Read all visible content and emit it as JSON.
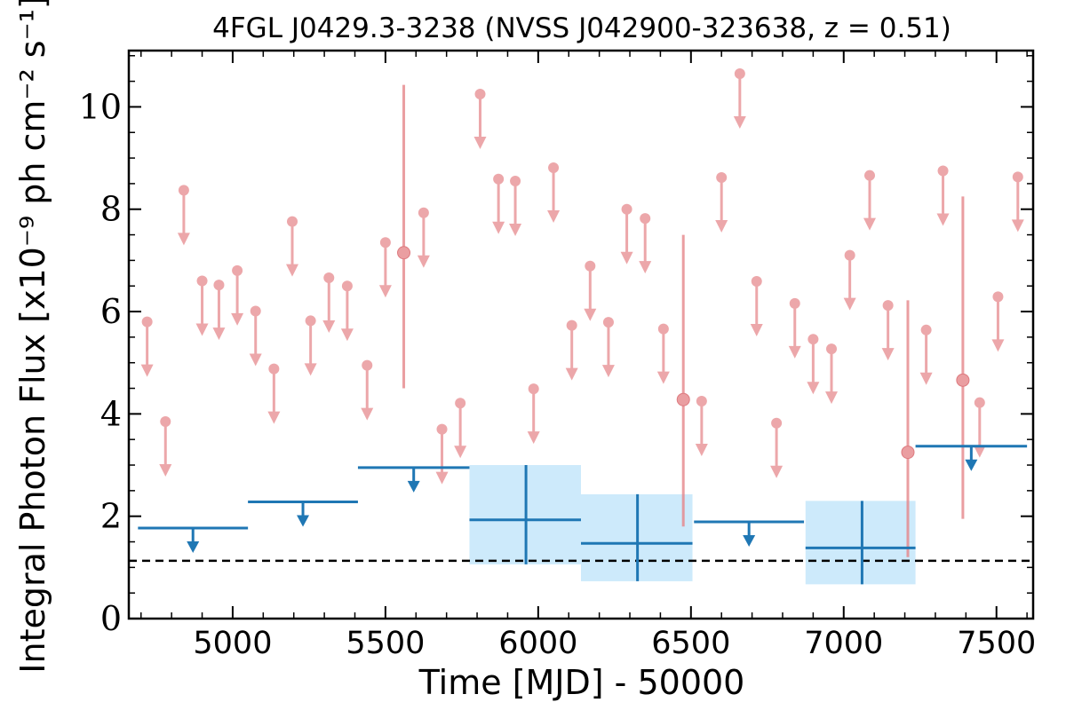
{
  "chart_data": {
    "type": "scatter",
    "title": "4FGL J0429.3-3238 (NVSS J042900-323638, z = 0.51)",
    "xlabel": "Time [MJD] - 50000",
    "ylabel": "Integral Photon Flux [x10⁻⁹ ph cm⁻² s⁻¹]",
    "xlim": [
      4660,
      7620
    ],
    "ylim": [
      0,
      11.1
    ],
    "x_ticks": [
      5000,
      5500,
      6000,
      6500,
      7000,
      7500
    ],
    "y_ticks": [
      0,
      2,
      4,
      6,
      8,
      10
    ],
    "reference_line": {
      "y": 1.13,
      "style": "dashed"
    },
    "colors": {
      "short_bins": "#e6868a",
      "long_bins": "#1f77b4",
      "long_bins_error_band": "#cdeafb",
      "reference_line": "#000000"
    },
    "series": [
      {
        "bin": "short",
        "upper_limits": [
          {
            "x": 4720,
            "y": 5.8
          },
          {
            "x": 4780,
            "y": 3.85
          },
          {
            "x": 4840,
            "y": 8.37
          },
          {
            "x": 4900,
            "y": 6.6
          },
          {
            "x": 4955,
            "y": 6.52
          },
          {
            "x": 5015,
            "y": 6.8
          },
          {
            "x": 5075,
            "y": 6.01
          },
          {
            "x": 5135,
            "y": 4.88
          },
          {
            "x": 5195,
            "y": 7.76
          },
          {
            "x": 5255,
            "y": 5.82
          },
          {
            "x": 5315,
            "y": 6.66
          },
          {
            "x": 5375,
            "y": 6.5
          },
          {
            "x": 5440,
            "y": 4.95
          },
          {
            "x": 5500,
            "y": 7.35
          },
          {
            "x": 5625,
            "y": 7.93
          },
          {
            "x": 5685,
            "y": 3.7
          },
          {
            "x": 5745,
            "y": 4.21
          },
          {
            "x": 5810,
            "y": 10.25
          },
          {
            "x": 5870,
            "y": 8.59
          },
          {
            "x": 5925,
            "y": 8.55
          },
          {
            "x": 5985,
            "y": 4.49
          },
          {
            "x": 6050,
            "y": 8.81
          },
          {
            "x": 6110,
            "y": 5.73
          },
          {
            "x": 6170,
            "y": 6.89
          },
          {
            "x": 6230,
            "y": 5.79
          },
          {
            "x": 6290,
            "y": 8.0
          },
          {
            "x": 6350,
            "y": 7.82
          },
          {
            "x": 6410,
            "y": 5.66
          },
          {
            "x": 6535,
            "y": 4.25
          },
          {
            "x": 6600,
            "y": 8.62
          },
          {
            "x": 6660,
            "y": 10.65
          },
          {
            "x": 6715,
            "y": 6.59
          },
          {
            "x": 6780,
            "y": 3.82
          },
          {
            "x": 6840,
            "y": 6.16
          },
          {
            "x": 6900,
            "y": 5.46
          },
          {
            "x": 6960,
            "y": 5.27
          },
          {
            "x": 7020,
            "y": 7.1
          },
          {
            "x": 7085,
            "y": 8.66
          },
          {
            "x": 7145,
            "y": 6.12
          },
          {
            "x": 7270,
            "y": 5.64
          },
          {
            "x": 7325,
            "y": 8.75
          },
          {
            "x": 7445,
            "y": 4.22
          },
          {
            "x": 7505,
            "y": 6.29
          },
          {
            "x": 7570,
            "y": 8.63
          }
        ],
        "detections": [
          {
            "x": 5560,
            "y": 7.15,
            "ylow": 4.5,
            "yhigh": 10.43
          },
          {
            "x": 6475,
            "y": 4.28,
            "ylow": 1.8,
            "yhigh": 7.5
          },
          {
            "x": 7210,
            "y": 3.25,
            "ylow": 1.2,
            "yhigh": 6.22
          },
          {
            "x": 7390,
            "y": 4.66,
            "ylow": 1.95,
            "yhigh": 8.25
          }
        ]
      },
      {
        "bin": "long",
        "upper_limits": [
          {
            "x0": 4690,
            "x1": 5050,
            "y": 1.77
          },
          {
            "x0": 5050,
            "x1": 5410,
            "y": 2.28
          },
          {
            "x0": 5410,
            "x1": 5775,
            "y": 2.95
          },
          {
            "x0": 6510,
            "x1": 6870,
            "y": 1.89
          },
          {
            "x0": 7235,
            "x1": 7600,
            "y": 3.37
          }
        ],
        "detections": [
          {
            "x0": 5775,
            "x1": 6140,
            "x": 5960,
            "y": 1.93,
            "ylow": 1.06,
            "yhigh": 3.0
          },
          {
            "x0": 6140,
            "x1": 6505,
            "x": 6325,
            "y": 1.47,
            "ylow": 0.73,
            "yhigh": 2.43
          },
          {
            "x0": 6875,
            "x1": 7235,
            "x": 7060,
            "y": 1.38,
            "ylow": 0.67,
            "yhigh": 2.3
          }
        ]
      }
    ]
  }
}
